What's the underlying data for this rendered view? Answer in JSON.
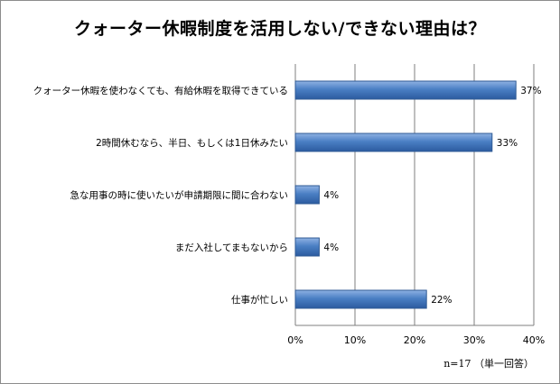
{
  "chart_data": {
    "type": "bar",
    "orientation": "horizontal",
    "title": "クォーター休暇制度を活用しない/できない理由は？",
    "categories": [
      "クォーター休暇を使わなくても、有給休暇を取得できている",
      "2時間休むなら、半日、もしくは1日休みたい",
      "急な用事の時に使いたいが申請期限に間に合わない",
      "まだ入社してまもないから",
      "仕事が忙しい"
    ],
    "values": [
      37,
      33,
      4,
      4,
      22
    ],
    "value_labels": [
      "37%",
      "33%",
      "4%",
      "4%",
      "22%"
    ],
    "xlim": [
      0,
      40
    ],
    "x_ticks": [
      "0%",
      "10%",
      "20%",
      "30%",
      "40%"
    ],
    "grid": true,
    "bar_color": "#4a7fc4",
    "note": "n=17 （単一回答）"
  }
}
